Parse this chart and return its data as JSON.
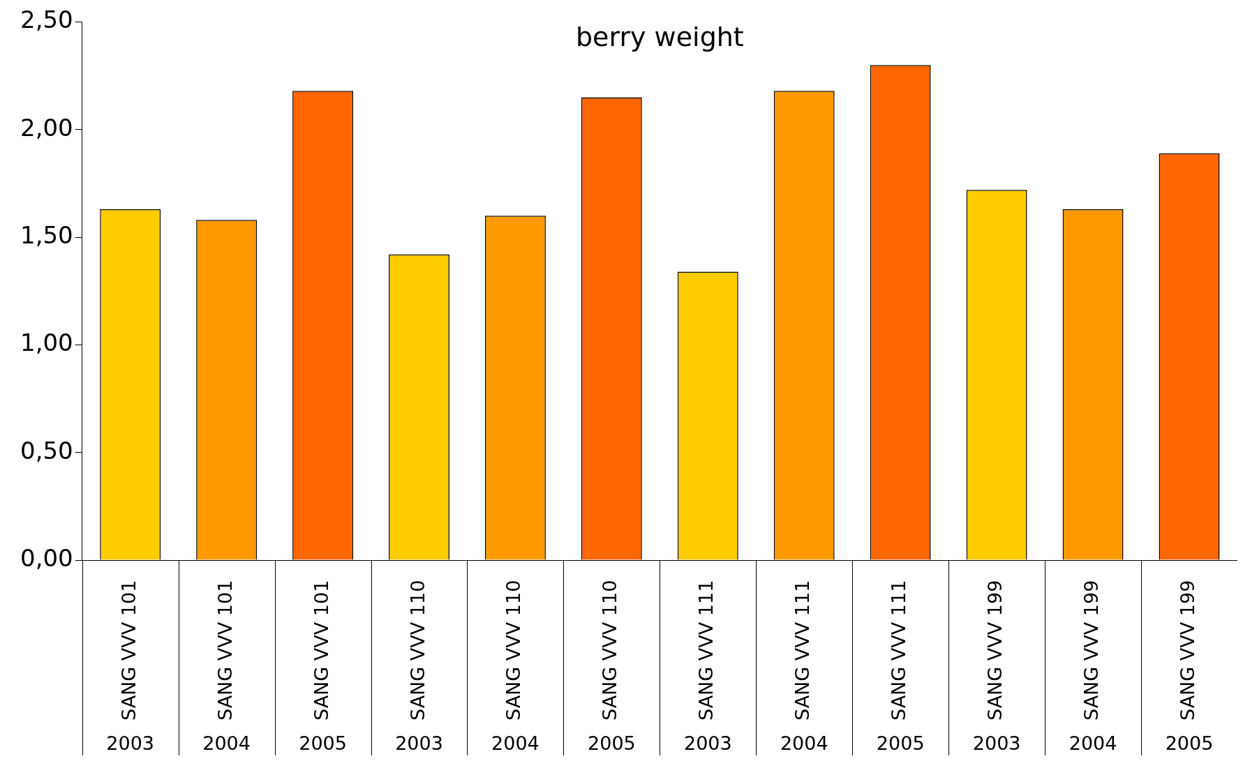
{
  "chart_data": {
    "type": "bar",
    "title": "berry weight",
    "categories": [
      "SANG VVV 101\n2003",
      "SANG VVV 101\n2004",
      "SANG VVV 101\n2005",
      "SANG VVV 110\n2003",
      "SANG VVV 110\n2004",
      "SANG VVV 110\n2005",
      "SANG VVV 111\n2003",
      "SANG VVV 111\n2004",
      "SANG VVV 111\n2005",
      "SANG VVV 199\n2003",
      "SANG VVV 199\n2004",
      "SANG VVV 199\n2005"
    ],
    "values": [
      1.63,
      1.58,
      2.18,
      1.42,
      1.6,
      2.15,
      1.34,
      2.18,
      2.3,
      1.72,
      1.63,
      1.89
    ],
    "colors": [
      "#ffcc00",
      "#ff9900",
      "#ff6600",
      "#ffcc00",
      "#ff9900",
      "#ff6600",
      "#ffcc00",
      "#ff9900",
      "#ff6600",
      "#ffcc00",
      "#ff9900",
      "#ff6600"
    ],
    "ylim": [
      0,
      2.5
    ],
    "yticks": [
      {
        "value": 0,
        "label": "0,00"
      },
      {
        "value": 0.5,
        "label": "0,50"
      },
      {
        "value": 1,
        "label": "1,00"
      },
      {
        "value": 1.5,
        "label": "1,50"
      },
      {
        "value": 2,
        "label": "2,00"
      },
      {
        "value": 2.5,
        "label": "2,50"
      }
    ]
  }
}
